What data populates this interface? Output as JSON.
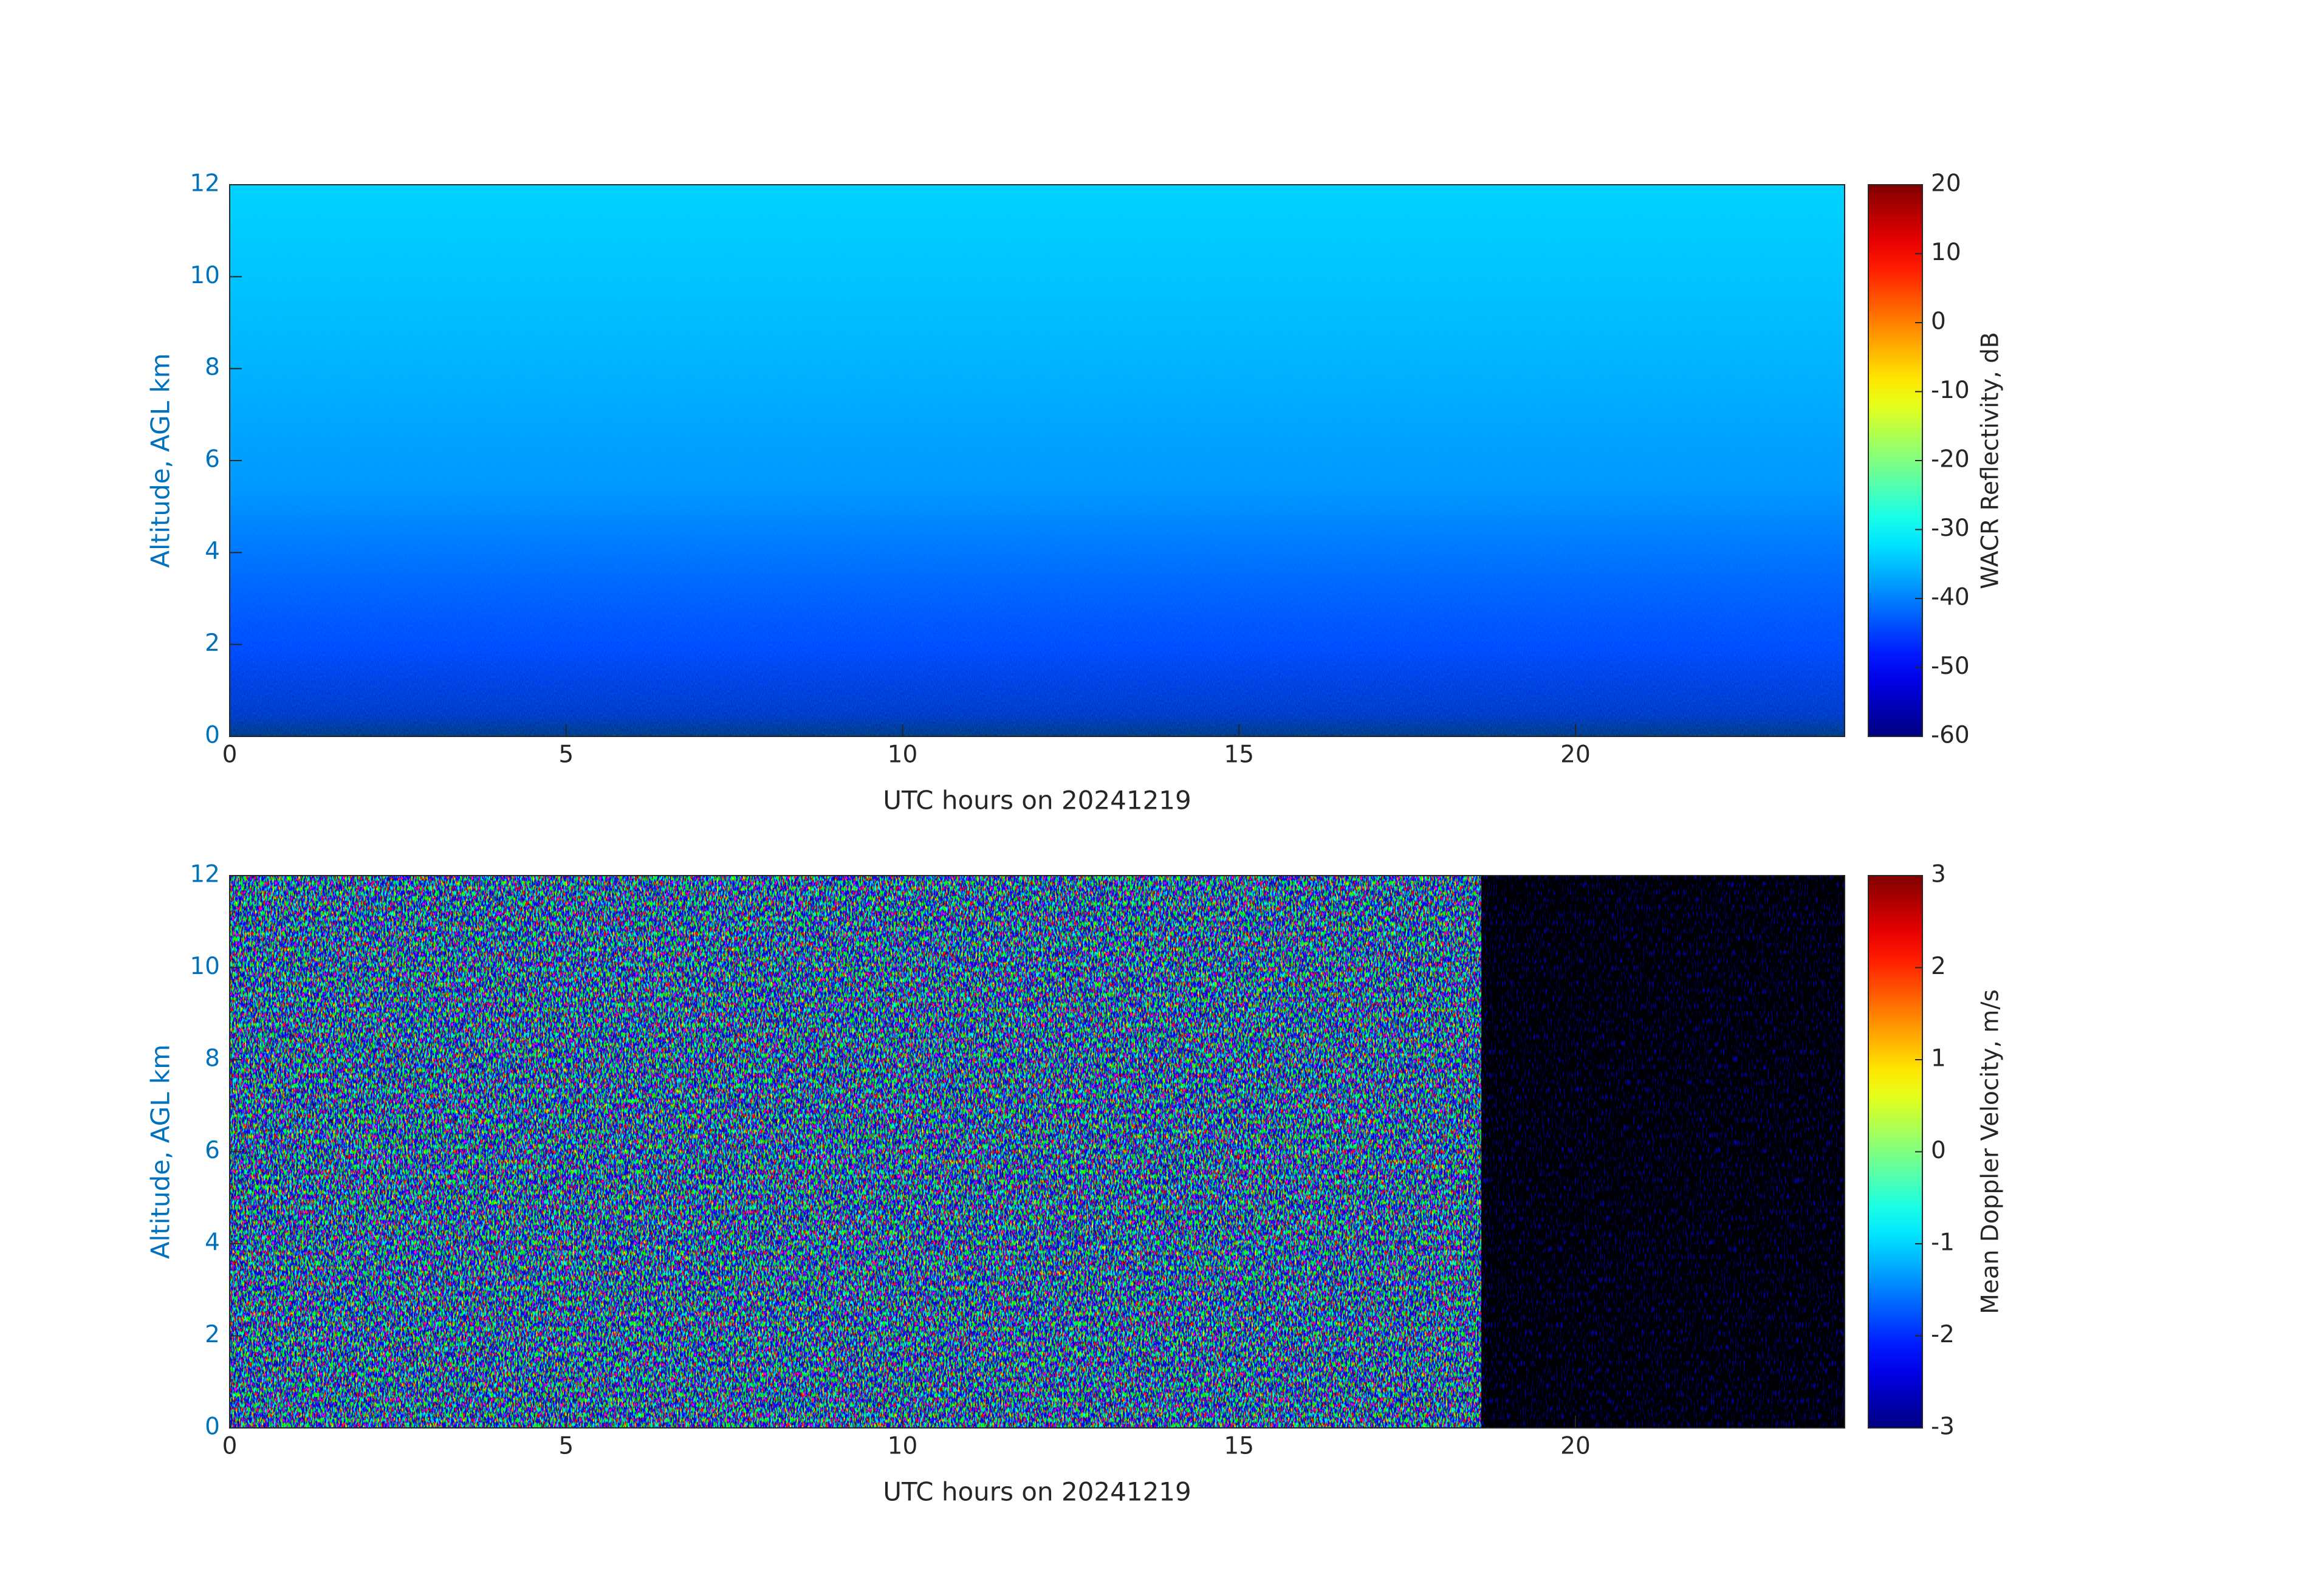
{
  "chart_data": [
    {
      "type": "heatmap",
      "xlabel": "UTC hours on 20241219",
      "ylabel": "Altitude, AGL km",
      "xlim": [
        0,
        24
      ],
      "xticks": [
        0,
        5,
        10,
        15,
        20
      ],
      "ylim": [
        0,
        12
      ],
      "yticks": [
        0,
        2,
        4,
        6,
        8,
        10,
        12
      ],
      "colorbar": {
        "label": "WACR Reflectivity, dB",
        "colormap": "jet",
        "lim": [
          -60,
          20
        ],
        "ticks": [
          -60,
          -50,
          -40,
          -30,
          -20,
          -10,
          0,
          10,
          20
        ]
      }
    },
    {
      "type": "heatmap",
      "xlabel": "UTC hours on 20241219",
      "ylabel": "Altitude, AGL km",
      "xlim": [
        0,
        24
      ],
      "xticks": [
        0,
        5,
        10,
        15,
        20
      ],
      "ylim": [
        0,
        12
      ],
      "yticks": [
        0,
        2,
        4,
        6,
        8,
        10,
        12
      ],
      "colorbar": {
        "label": "Mean Doppler Velocity, m/s",
        "colormap": "jet",
        "lim": [
          -3,
          3
        ],
        "ticks": [
          -3,
          -2,
          -1,
          0,
          1,
          2,
          3
        ]
      }
    }
  ]
}
